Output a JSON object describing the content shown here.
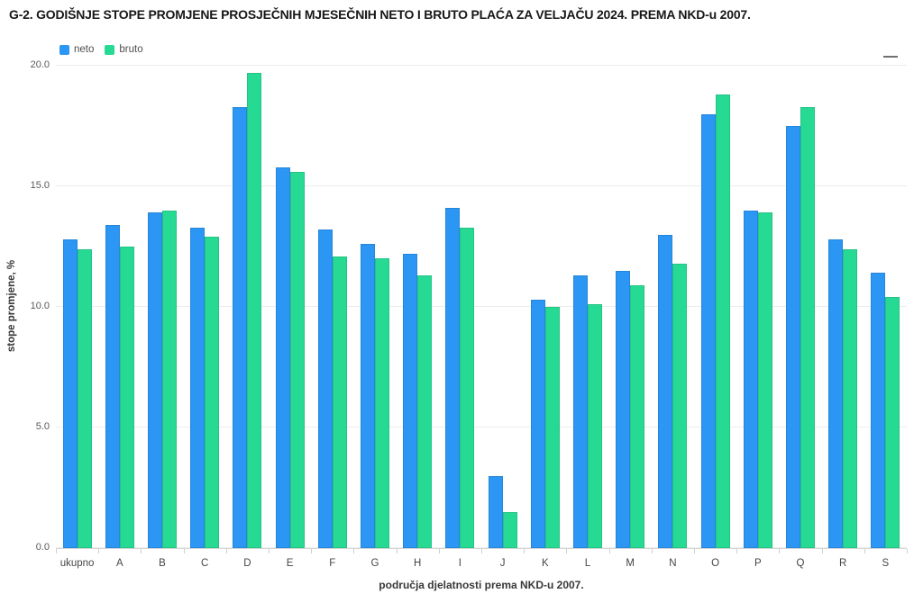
{
  "controls": {
    "menu_icon": "hamburger-menu-icon"
  },
  "chart_data": {
    "type": "bar",
    "title": "G-2. GODIŠNJE STOPE PROMJENE PROSJEČNIH MJESEČNIH NETO I BRUTO PLAĆA ZA VELJAČU 2024. PREMA NKD-u 2007.",
    "categories": [
      "ukupno",
      "A",
      "B",
      "C",
      "D",
      "E",
      "F",
      "G",
      "H",
      "I",
      "J",
      "K",
      "L",
      "M",
      "N",
      "O",
      "P",
      "Q",
      "R",
      "S"
    ],
    "series": [
      {
        "name": "neto",
        "color": "#2b96f3",
        "values": [
          12.8,
          13.4,
          13.9,
          13.3,
          18.3,
          15.8,
          13.2,
          12.6,
          12.2,
          14.1,
          3.0,
          10.3,
          11.3,
          11.5,
          13.0,
          18.0,
          14.0,
          17.5,
          12.8,
          11.4
        ]
      },
      {
        "name": "bruto",
        "color": "#27da93",
        "values": [
          12.4,
          12.5,
          14.0,
          12.9,
          19.7,
          15.6,
          12.1,
          12.0,
          11.3,
          13.3,
          1.5,
          10.0,
          10.1,
          10.9,
          11.8,
          18.8,
          13.9,
          18.3,
          12.4,
          10.4
        ]
      }
    ],
    "xlabel": "područja djelatnosti prema NKD-u 2007.",
    "ylabel": "stope promjene, %",
    "ylim": [
      0,
      20
    ],
    "yticks": [
      0,
      5,
      10,
      15,
      20
    ],
    "ytick_labels": [
      "0.0",
      "5.0",
      "10.0",
      "15.0",
      "20.0"
    ],
    "grid": true,
    "legend_position": "top-left"
  }
}
